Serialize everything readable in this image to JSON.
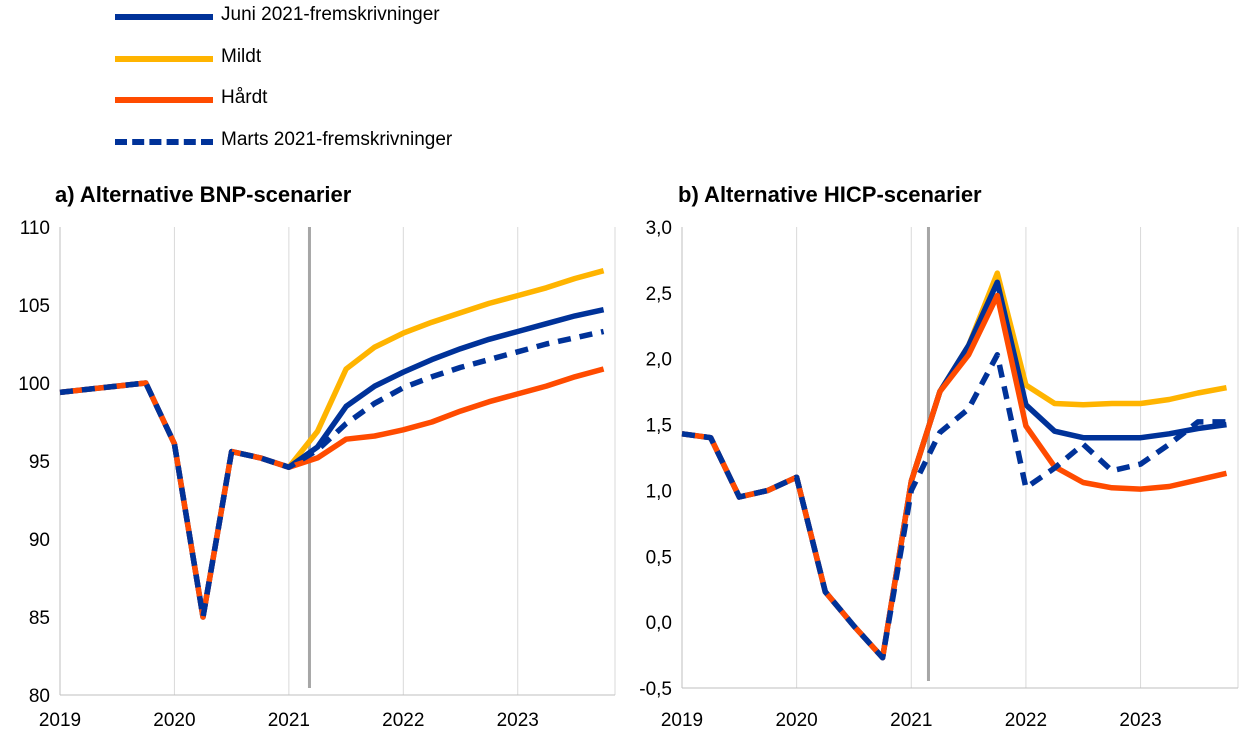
{
  "legend": [
    {
      "name": "Juni 2021-fremskrivninger",
      "color": "#003299",
      "dash": false
    },
    {
      "name": "Mildt",
      "color": "#FFB400",
      "dash": false
    },
    {
      "name": "Hårdt",
      "color": "#FF4B00",
      "dash": false
    },
    {
      "name": "Marts 2021-fremskrivninger",
      "color": "#003299",
      "dash": true
    }
  ],
  "chart_data": [
    {
      "type": "line",
      "title": "a) Alternative BNP-scenarier",
      "xlabel": "",
      "ylabel": "",
      "xlim": [
        2019,
        2023.85
      ],
      "ylim": [
        80,
        110
      ],
      "x_ticks": [
        "2019",
        "2020",
        "2021",
        "2022",
        "2023"
      ],
      "y_ticks": [
        "80",
        "85",
        "90",
        "95",
        "100",
        "105",
        "110"
      ],
      "vline": 2021.18,
      "grid": "vertical",
      "series": [
        {
          "name": "Juni 2021-fremskrivninger",
          "color": "#003299",
          "x": [
            2019,
            2019.25,
            2019.5,
            2019.75,
            2020,
            2020.25,
            2020.5,
            2020.75,
            2021,
            2021.25,
            2021.5,
            2021.75,
            2022,
            2022.25,
            2022.5,
            2022.75,
            2023,
            2023.25,
            2023.5,
            2023.75
          ],
          "values": [
            99.4,
            99.6,
            99.8,
            100.0,
            96.1,
            85.0,
            95.6,
            95.2,
            94.6,
            95.9,
            98.5,
            99.8,
            100.7,
            101.5,
            102.2,
            102.8,
            103.3,
            103.8,
            104.3,
            104.7
          ]
        },
        {
          "name": "Mildt",
          "color": "#FFB400",
          "x": [
            2021,
            2021.25,
            2021.5,
            2021.75,
            2022,
            2022.25,
            2022.5,
            2022.75,
            2023,
            2023.25,
            2023.5,
            2023.75
          ],
          "values": [
            94.6,
            96.9,
            100.9,
            102.3,
            103.2,
            103.9,
            104.5,
            105.1,
            105.6,
            106.1,
            106.7,
            107.2
          ]
        },
        {
          "name": "Hårdt",
          "color": "#FF4B00",
          "x": [
            2019,
            2019.25,
            2019.5,
            2019.75,
            2020,
            2020.25,
            2020.5,
            2020.75,
            2021,
            2021.25,
            2021.5,
            2021.75,
            2022,
            2022.25,
            2022.5,
            2022.75,
            2023,
            2023.25,
            2023.5,
            2023.75
          ],
          "values": [
            99.4,
            99.6,
            99.8,
            100.0,
            96.1,
            85.0,
            95.6,
            95.2,
            94.6,
            95.2,
            96.4,
            96.6,
            97.0,
            97.5,
            98.2,
            98.8,
            99.3,
            99.8,
            100.4,
            100.9
          ]
        },
        {
          "name": "Marts 2021-fremskrivninger",
          "color": "#003299",
          "dash": true,
          "x": [
            2019,
            2019.25,
            2019.5,
            2019.75,
            2020,
            2020.25,
            2020.5,
            2020.75,
            2021,
            2021.25,
            2021.5,
            2021.75,
            2022,
            2022.25,
            2022.5,
            2022.75,
            2023,
            2023.25,
            2023.5,
            2023.75
          ],
          "values": [
            99.4,
            99.6,
            99.8,
            100.0,
            96.1,
            85.0,
            95.6,
            95.2,
            94.6,
            95.7,
            97.4,
            98.7,
            99.7,
            100.4,
            101.0,
            101.5,
            102.0,
            102.5,
            102.9,
            103.3
          ]
        }
      ]
    },
    {
      "type": "line",
      "title": "b) Alternative HICP-scenarier",
      "xlabel": "",
      "ylabel": "",
      "xlim": [
        2019,
        2023.85
      ],
      "ylim": [
        -0.5,
        3.0
      ],
      "x_ticks": [
        "2019",
        "2020",
        "2021",
        "2022",
        "2023"
      ],
      "y_ticks": [
        "-0,5",
        "0,0",
        "0,5",
        "1,0",
        "1,5",
        "2,0",
        "2,5",
        "3,0"
      ],
      "vline": 2021.15,
      "grid": "vertical",
      "series": [
        {
          "name": "Juni 2021-fremskrivninger",
          "color": "#003299",
          "x": [
            2019,
            2019.25,
            2019.5,
            2019.75,
            2020,
            2020.25,
            2020.5,
            2020.75,
            2021,
            2021.25,
            2021.5,
            2021.75,
            2022,
            2022.25,
            2022.5,
            2022.75,
            2023,
            2023.25,
            2023.5,
            2023.75
          ],
          "values": [
            1.43,
            1.4,
            0.95,
            1.0,
            1.1,
            0.23,
            -0.03,
            -0.27,
            1.07,
            1.75,
            2.1,
            2.58,
            1.65,
            1.45,
            1.4,
            1.4,
            1.4,
            1.43,
            1.47,
            1.5
          ]
        },
        {
          "name": "Mildt",
          "color": "#FFB400",
          "x": [
            2021,
            2021.25,
            2021.5,
            2021.75,
            2022,
            2022.25,
            2022.5,
            2022.75,
            2023,
            2023.25,
            2023.5,
            2023.75
          ],
          "values": [
            1.07,
            1.75,
            2.1,
            2.65,
            1.8,
            1.66,
            1.65,
            1.66,
            1.66,
            1.69,
            1.74,
            1.78
          ]
        },
        {
          "name": "Hårdt",
          "color": "#FF4B00",
          "x": [
            2019,
            2019.25,
            2019.5,
            2019.75,
            2020,
            2020.25,
            2020.5,
            2020.75,
            2021,
            2021.25,
            2021.5,
            2021.75,
            2022,
            2022.25,
            2022.5,
            2022.75,
            2023,
            2023.25,
            2023.5,
            2023.75
          ],
          "values": [
            1.43,
            1.4,
            0.95,
            1.0,
            1.1,
            0.23,
            -0.03,
            -0.27,
            1.07,
            1.75,
            2.03,
            2.48,
            1.49,
            1.18,
            1.06,
            1.02,
            1.01,
            1.03,
            1.08,
            1.13
          ]
        },
        {
          "name": "Marts 2021-fremskrivninger",
          "color": "#003299",
          "dash": true,
          "x": [
            2019,
            2019.25,
            2019.5,
            2019.75,
            2020,
            2020.25,
            2020.5,
            2020.75,
            2021,
            2021.25,
            2021.5,
            2021.75,
            2022,
            2022.25,
            2022.5,
            2022.75,
            2023,
            2023.25,
            2023.5,
            2023.75
          ],
          "values": [
            1.43,
            1.4,
            0.95,
            1.0,
            1.1,
            0.23,
            -0.03,
            -0.27,
            1.0,
            1.44,
            1.62,
            2.03,
            1.02,
            1.17,
            1.35,
            1.15,
            1.2,
            1.35,
            1.52,
            1.52
          ]
        }
      ]
    }
  ]
}
